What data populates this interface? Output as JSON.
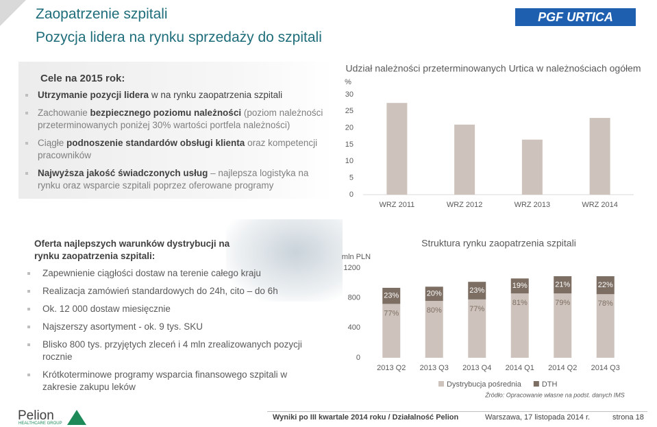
{
  "header": {
    "title": "Zaopatrzenie szpitali",
    "subtitle": "Pozycja lidera na rynku sprzedaży do szpitali",
    "logo": "PGF URTICA"
  },
  "goals": {
    "title": "Cele na 2015 rok:",
    "items": [
      [
        {
          "text": "Utrzymanie pozycji lidera",
          "bold": true
        },
        {
          "text": " w na rynku zaopatrzenia szpitali",
          "bold": false
        }
      ],
      [
        {
          "text": "Zachowanie ",
          "bold": false
        },
        {
          "text": "bezpiecznego poziomu należności",
          "bold": true
        },
        {
          "text": " (poziom należności przeterminowanych poniżej 30% wartości portfela należności)",
          "bold": false
        }
      ],
      [
        {
          "text": "Ciągłe ",
          "bold": false
        },
        {
          "text": "podnoszenie standardów obsługi klienta",
          "bold": true
        },
        {
          "text": " oraz kompetencji pracowników",
          "bold": false
        }
      ],
      [
        {
          "text": "Najwyższa jakość świadczonych usług",
          "bold": true
        },
        {
          "text": " – najlepsza logistyka na rynku oraz wsparcie szpitali poprzez oferowane programy",
          "bold": false
        }
      ]
    ]
  },
  "offer": {
    "title": "Oferta najlepszych warunków dystrybucji na rynku zaopatrzenia szpitali:",
    "items": [
      "Zapewnienie ciągłości dostaw na terenie całego kraju",
      "Realizacja zamówień standardowych do 24h, cito – do 6h",
      "Ok. 12 000 dostaw miesięcznie",
      "Najszerszy asortyment - ok. 9 tys. SKU",
      "Blisko 800 tys. przyjętych zleceń i 4 mln zrealizowanych pozycji rocznie",
      "Krótkoterminowe programy wsparcia finansowego szpitali w zakresie zakupu leków"
    ]
  },
  "chart_data": [
    {
      "type": "bar",
      "title": "Udział należności przeterminowanych Urtica w należnościach ogółem",
      "y_label": "%",
      "categories": [
        "WRZ 2011",
        "WRZ 2012",
        "WRZ 2013",
        "WRZ 2014"
      ],
      "values": [
        27.5,
        21,
        16.5,
        23
      ],
      "color": "#cdc3bc",
      "ylim": [
        0,
        30
      ],
      "yticks": [
        0,
        5,
        10,
        15,
        20,
        25,
        30
      ]
    },
    {
      "type": "bar",
      "stacked": true,
      "title": "Struktura rynku zaopatrzenia szpitali",
      "y_label": "mln PLN",
      "categories": [
        "2013 Q2",
        "2013 Q3",
        "2013 Q4",
        "2014 Q1",
        "2014 Q2",
        "2014 Q3"
      ],
      "series": [
        {
          "name": "Dystrybucja pośrednia",
          "color": "#cdc3bc",
          "values": [
            720,
            760,
            780,
            860,
            860,
            850
          ],
          "share_labels": [
            "77%",
            "80%",
            "77%",
            "81%",
            "79%",
            "78%"
          ]
        },
        {
          "name": "DTH",
          "color": "#7d6e63",
          "values": [
            215,
            190,
            235,
            200,
            230,
            240
          ],
          "share_labels": [
            "23%",
            "20%",
            "23%",
            "19%",
            "21%",
            "22%"
          ]
        }
      ],
      "ylim": [
        0,
        1200
      ],
      "yticks": [
        0,
        400,
        800,
        1200
      ],
      "source": "Źródło: Opracowanie własne na podst. danych IMS"
    }
  ],
  "footer": {
    "logo": "Pelion",
    "logo_sub": "HEALTHCARE GROUP",
    "report": "Wyniki po III kwartale 2014 roku / Działalność Pelion",
    "date": "Warszawa, 17 listopada 2014 r.",
    "page": "strona 18"
  }
}
